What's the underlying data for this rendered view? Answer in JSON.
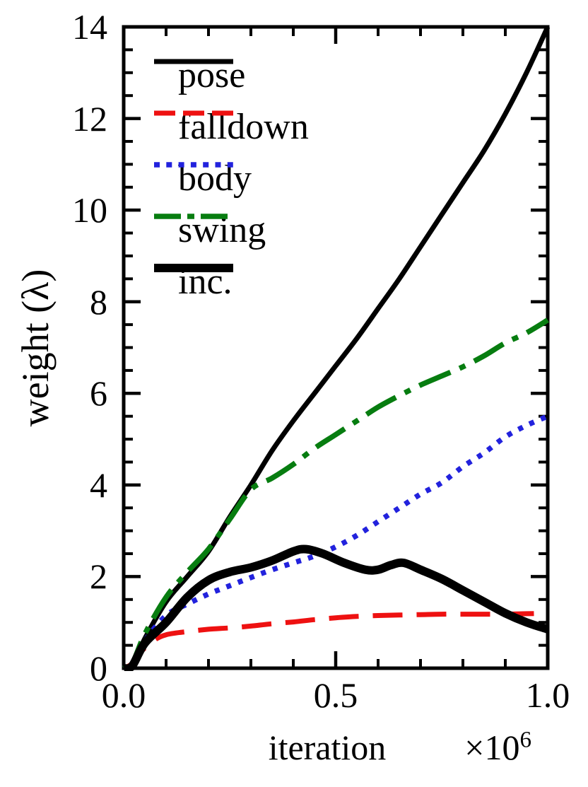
{
  "chart_data": {
    "type": "line",
    "title": "",
    "xlabel": "iteration",
    "x_scale_base": "×10",
    "x_scale_exponent": "6",
    "ylabel": "weight (λ)",
    "xlim": [
      0.0,
      1.0
    ],
    "ylim": [
      0,
      14
    ],
    "x_major_ticks": [
      0.0,
      0.5,
      1.0
    ],
    "x_tick_labels": [
      "0.0",
      "0.5",
      "1.0"
    ],
    "x_minor_tick_step": 0.1,
    "y_major_ticks": [
      0,
      2,
      4,
      6,
      8,
      10,
      12,
      14
    ],
    "y_tick_labels": [
      "0",
      "2",
      "4",
      "6",
      "8",
      "10",
      "12",
      "14"
    ],
    "y_minor_tick_step": 0.5,
    "grid": false,
    "axis_color": "#000000",
    "background_color": "#ffffff",
    "legend": {
      "position": "upper-left-inside",
      "entries": [
        "pose",
        "falldown",
        "body",
        "swing",
        "inc."
      ]
    },
    "series": [
      {
        "name": "pose",
        "color": "#000000",
        "line_style": "solid",
        "line_width": 7,
        "x": [
          0,
          0.02,
          0.05,
          0.1,
          0.15,
          0.2,
          0.25,
          0.3,
          0.35,
          0.4,
          0.45,
          0.5,
          0.55,
          0.6,
          0.65,
          0.7,
          0.75,
          0.8,
          0.85,
          0.9,
          0.95,
          1.0
        ],
        "y": [
          0,
          0.05,
          0.65,
          1.45,
          2.0,
          2.55,
          3.3,
          4.0,
          4.75,
          5.4,
          6.0,
          6.6,
          7.2,
          7.85,
          8.5,
          9.2,
          9.9,
          10.6,
          11.3,
          12.1,
          13.0,
          14.0
        ]
      },
      {
        "name": "falldown",
        "color": "#ee1111",
        "line_style": "dashed",
        "line_width": 7,
        "x": [
          0,
          0.02,
          0.04,
          0.07,
          0.1,
          0.15,
          0.2,
          0.25,
          0.3,
          0.35,
          0.4,
          0.45,
          0.5,
          0.55,
          0.6,
          0.65,
          0.7,
          0.75,
          0.8,
          0.85,
          0.9,
          0.95,
          1.0
        ],
        "y": [
          0,
          0.1,
          0.35,
          0.6,
          0.73,
          0.8,
          0.85,
          0.88,
          0.92,
          0.97,
          1.01,
          1.06,
          1.1,
          1.13,
          1.15,
          1.16,
          1.17,
          1.18,
          1.18,
          1.18,
          1.18,
          1.19,
          1.2
        ]
      },
      {
        "name": "body",
        "color": "#2222dd",
        "line_style": "dotted",
        "line_width": 7.5,
        "x": [
          0,
          0.02,
          0.05,
          0.1,
          0.15,
          0.2,
          0.25,
          0.3,
          0.35,
          0.4,
          0.45,
          0.5,
          0.55,
          0.6,
          0.65,
          0.7,
          0.75,
          0.8,
          0.85,
          0.9,
          0.95,
          1.0
        ],
        "y": [
          0,
          0.1,
          0.6,
          1.15,
          1.4,
          1.62,
          1.8,
          1.98,
          2.15,
          2.3,
          2.45,
          2.65,
          2.9,
          3.2,
          3.5,
          3.8,
          4.05,
          4.4,
          4.7,
          5.05,
          5.3,
          5.5
        ]
      },
      {
        "name": "swing",
        "color": "#077d10",
        "line_style": "dashdot",
        "line_width": 7.5,
        "x": [
          0,
          0.02,
          0.05,
          0.1,
          0.15,
          0.2,
          0.25,
          0.3,
          0.35,
          0.4,
          0.45,
          0.5,
          0.55,
          0.6,
          0.65,
          0.7,
          0.75,
          0.8,
          0.85,
          0.9,
          0.95,
          1.0
        ],
        "y": [
          0,
          0.1,
          0.75,
          1.55,
          2.1,
          2.6,
          3.25,
          3.9,
          4.15,
          4.45,
          4.8,
          5.1,
          5.4,
          5.7,
          5.95,
          6.18,
          6.38,
          6.58,
          6.82,
          7.1,
          7.32,
          7.6
        ]
      },
      {
        "name": "inc.",
        "color": "#000000",
        "line_style": "solid",
        "line_width": 12,
        "x": [
          0,
          0.02,
          0.05,
          0.1,
          0.15,
          0.2,
          0.25,
          0.3,
          0.35,
          0.4,
          0.43,
          0.47,
          0.52,
          0.57,
          0.6,
          0.63,
          0.66,
          0.7,
          0.75,
          0.8,
          0.85,
          0.9,
          0.95,
          1.0
        ],
        "y": [
          0,
          0.05,
          0.55,
          1.0,
          1.55,
          1.92,
          2.1,
          2.2,
          2.35,
          2.55,
          2.6,
          2.5,
          2.3,
          2.15,
          2.15,
          2.25,
          2.3,
          2.15,
          1.95,
          1.7,
          1.45,
          1.2,
          1.0,
          0.85
        ]
      }
    ]
  }
}
